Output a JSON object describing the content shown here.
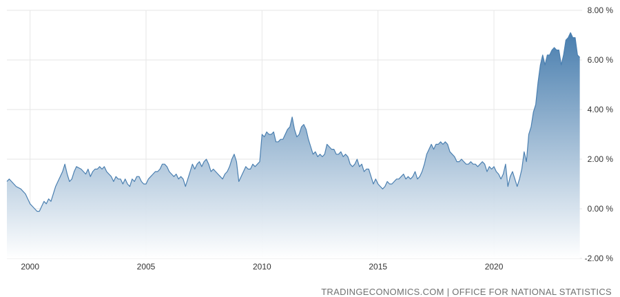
{
  "chart_data": {
    "type": "area",
    "x_unit": "year",
    "series": [
      {
        "values": [
          [
            1999.0,
            1.1
          ],
          [
            1999.1,
            1.2
          ],
          [
            1999.2,
            1.1
          ],
          [
            1999.3,
            1.0
          ],
          [
            1999.4,
            0.9
          ],
          [
            1999.6,
            0.8
          ],
          [
            1999.8,
            0.6
          ],
          [
            1999.9,
            0.4
          ],
          [
            2000.0,
            0.2
          ],
          [
            2000.1,
            0.1
          ],
          [
            2000.2,
            0.0
          ],
          [
            2000.3,
            -0.1
          ],
          [
            2000.4,
            -0.1
          ],
          [
            2000.5,
            0.1
          ],
          [
            2000.6,
            0.3
          ],
          [
            2000.7,
            0.2
          ],
          [
            2000.8,
            0.4
          ],
          [
            2000.9,
            0.3
          ],
          [
            2001.0,
            0.6
          ],
          [
            2001.1,
            0.9
          ],
          [
            2001.2,
            1.1
          ],
          [
            2001.3,
            1.3
          ],
          [
            2001.4,
            1.5
          ],
          [
            2001.5,
            1.8
          ],
          [
            2001.6,
            1.4
          ],
          [
            2001.7,
            1.1
          ],
          [
            2001.8,
            1.2
          ],
          [
            2001.9,
            1.5
          ],
          [
            2002.0,
            1.7
          ],
          [
            2002.2,
            1.6
          ],
          [
            2002.3,
            1.5
          ],
          [
            2002.4,
            1.4
          ],
          [
            2002.5,
            1.6
          ],
          [
            2002.6,
            1.3
          ],
          [
            2002.7,
            1.5
          ],
          [
            2002.8,
            1.6
          ],
          [
            2002.9,
            1.6
          ],
          [
            2003.0,
            1.7
          ],
          [
            2003.1,
            1.6
          ],
          [
            2003.2,
            1.7
          ],
          [
            2003.3,
            1.5
          ],
          [
            2003.4,
            1.4
          ],
          [
            2003.5,
            1.3
          ],
          [
            2003.6,
            1.1
          ],
          [
            2003.7,
            1.3
          ],
          [
            2003.8,
            1.2
          ],
          [
            2003.9,
            1.2
          ],
          [
            2004.0,
            1.0
          ],
          [
            2004.1,
            1.2
          ],
          [
            2004.2,
            1.0
          ],
          [
            2004.3,
            0.9
          ],
          [
            2004.4,
            1.2
          ],
          [
            2004.5,
            1.1
          ],
          [
            2004.6,
            1.3
          ],
          [
            2004.7,
            1.3
          ],
          [
            2004.8,
            1.1
          ],
          [
            2004.9,
            1.0
          ],
          [
            2005.0,
            1.0
          ],
          [
            2005.1,
            1.2
          ],
          [
            2005.2,
            1.3
          ],
          [
            2005.3,
            1.4
          ],
          [
            2005.4,
            1.5
          ],
          [
            2005.5,
            1.5
          ],
          [
            2005.6,
            1.6
          ],
          [
            2005.7,
            1.8
          ],
          [
            2005.8,
            1.8
          ],
          [
            2005.9,
            1.7
          ],
          [
            2006.0,
            1.5
          ],
          [
            2006.1,
            1.4
          ],
          [
            2006.2,
            1.3
          ],
          [
            2006.3,
            1.4
          ],
          [
            2006.4,
            1.2
          ],
          [
            2006.5,
            1.3
          ],
          [
            2006.6,
            1.2
          ],
          [
            2006.7,
            0.9
          ],
          [
            2006.8,
            1.2
          ],
          [
            2006.9,
            1.5
          ],
          [
            2007.0,
            1.8
          ],
          [
            2007.1,
            1.6
          ],
          [
            2007.2,
            1.8
          ],
          [
            2007.3,
            1.9
          ],
          [
            2007.4,
            1.7
          ],
          [
            2007.5,
            1.9
          ],
          [
            2007.6,
            2.0
          ],
          [
            2007.7,
            1.8
          ],
          [
            2007.8,
            1.5
          ],
          [
            2007.9,
            1.6
          ],
          [
            2008.0,
            1.5
          ],
          [
            2008.1,
            1.4
          ],
          [
            2008.2,
            1.3
          ],
          [
            2008.3,
            1.2
          ],
          [
            2008.4,
            1.4
          ],
          [
            2008.5,
            1.5
          ],
          [
            2008.6,
            1.7
          ],
          [
            2008.7,
            2.0
          ],
          [
            2008.8,
            2.2
          ],
          [
            2008.9,
            1.9
          ],
          [
            2009.0,
            1.1
          ],
          [
            2009.1,
            1.3
          ],
          [
            2009.2,
            1.5
          ],
          [
            2009.3,
            1.7
          ],
          [
            2009.4,
            1.6
          ],
          [
            2009.5,
            1.6
          ],
          [
            2009.6,
            1.8
          ],
          [
            2009.7,
            1.7
          ],
          [
            2009.8,
            1.8
          ],
          [
            2009.9,
            1.9
          ],
          [
            2010.0,
            3.0
          ],
          [
            2010.1,
            2.9
          ],
          [
            2010.2,
            3.1
          ],
          [
            2010.3,
            3.0
          ],
          [
            2010.4,
            3.0
          ],
          [
            2010.5,
            3.1
          ],
          [
            2010.6,
            2.7
          ],
          [
            2010.7,
            2.7
          ],
          [
            2010.8,
            2.8
          ],
          [
            2010.9,
            2.8
          ],
          [
            2011.0,
            3.0
          ],
          [
            2011.1,
            3.2
          ],
          [
            2011.2,
            3.3
          ],
          [
            2011.3,
            3.7
          ],
          [
            2011.4,
            3.2
          ],
          [
            2011.5,
            2.9
          ],
          [
            2011.6,
            3.0
          ],
          [
            2011.7,
            3.3
          ],
          [
            2011.8,
            3.4
          ],
          [
            2011.9,
            3.2
          ],
          [
            2012.0,
            2.8
          ],
          [
            2012.1,
            2.5
          ],
          [
            2012.2,
            2.2
          ],
          [
            2012.3,
            2.3
          ],
          [
            2012.4,
            2.1
          ],
          [
            2012.5,
            2.2
          ],
          [
            2012.6,
            2.1
          ],
          [
            2012.7,
            2.2
          ],
          [
            2012.8,
            2.6
          ],
          [
            2012.9,
            2.5
          ],
          [
            2013.0,
            2.4
          ],
          [
            2013.1,
            2.4
          ],
          [
            2013.2,
            2.2
          ],
          [
            2013.3,
            2.2
          ],
          [
            2013.4,
            2.3
          ],
          [
            2013.5,
            2.1
          ],
          [
            2013.6,
            2.2
          ],
          [
            2013.7,
            2.1
          ],
          [
            2013.8,
            1.8
          ],
          [
            2013.9,
            1.7
          ],
          [
            2014.0,
            1.8
          ],
          [
            2014.1,
            2.0
          ],
          [
            2014.2,
            1.7
          ],
          [
            2014.3,
            1.8
          ],
          [
            2014.4,
            1.5
          ],
          [
            2014.5,
            1.6
          ],
          [
            2014.6,
            1.6
          ],
          [
            2014.7,
            1.3
          ],
          [
            2014.8,
            1.0
          ],
          [
            2014.9,
            1.2
          ],
          [
            2015.0,
            1.0
          ],
          [
            2015.1,
            0.9
          ],
          [
            2015.2,
            0.8
          ],
          [
            2015.3,
            0.9
          ],
          [
            2015.4,
            1.1
          ],
          [
            2015.5,
            1.0
          ],
          [
            2015.6,
            1.0
          ],
          [
            2015.7,
            1.1
          ],
          [
            2015.8,
            1.2
          ],
          [
            2015.9,
            1.2
          ],
          [
            2016.0,
            1.3
          ],
          [
            2016.1,
            1.4
          ],
          [
            2016.2,
            1.2
          ],
          [
            2016.3,
            1.3
          ],
          [
            2016.4,
            1.2
          ],
          [
            2016.5,
            1.3
          ],
          [
            2016.6,
            1.5
          ],
          [
            2016.7,
            1.2
          ],
          [
            2016.8,
            1.3
          ],
          [
            2016.9,
            1.5
          ],
          [
            2017.0,
            1.8
          ],
          [
            2017.1,
            2.2
          ],
          [
            2017.2,
            2.4
          ],
          [
            2017.3,
            2.6
          ],
          [
            2017.4,
            2.4
          ],
          [
            2017.5,
            2.6
          ],
          [
            2017.6,
            2.6
          ],
          [
            2017.7,
            2.7
          ],
          [
            2017.8,
            2.6
          ],
          [
            2017.9,
            2.7
          ],
          [
            2018.0,
            2.6
          ],
          [
            2018.1,
            2.3
          ],
          [
            2018.2,
            2.2
          ],
          [
            2018.3,
            2.1
          ],
          [
            2018.4,
            1.9
          ],
          [
            2018.5,
            1.9
          ],
          [
            2018.6,
            2.0
          ],
          [
            2018.7,
            1.9
          ],
          [
            2018.8,
            1.8
          ],
          [
            2018.9,
            1.8
          ],
          [
            2019.0,
            1.9
          ],
          [
            2019.1,
            1.8
          ],
          [
            2019.2,
            1.8
          ],
          [
            2019.3,
            1.7
          ],
          [
            2019.4,
            1.8
          ],
          [
            2019.5,
            1.9
          ],
          [
            2019.6,
            1.8
          ],
          [
            2019.7,
            1.5
          ],
          [
            2019.8,
            1.7
          ],
          [
            2019.9,
            1.6
          ],
          [
            2020.0,
            1.7
          ],
          [
            2020.1,
            1.5
          ],
          [
            2020.2,
            1.4
          ],
          [
            2020.3,
            1.2
          ],
          [
            2020.4,
            1.4
          ],
          [
            2020.5,
            1.8
          ],
          [
            2020.6,
            0.9
          ],
          [
            2020.7,
            1.3
          ],
          [
            2020.8,
            1.5
          ],
          [
            2020.9,
            1.2
          ],
          [
            2021.0,
            0.9
          ],
          [
            2021.1,
            1.2
          ],
          [
            2021.2,
            1.6
          ],
          [
            2021.3,
            2.3
          ],
          [
            2021.4,
            1.9
          ],
          [
            2021.5,
            3.0
          ],
          [
            2021.6,
            3.3
          ],
          [
            2021.7,
            3.9
          ],
          [
            2021.8,
            4.2
          ],
          [
            2021.9,
            5.1
          ],
          [
            2022.0,
            5.8
          ],
          [
            2022.1,
            6.2
          ],
          [
            2022.2,
            5.8
          ],
          [
            2022.3,
            6.2
          ],
          [
            2022.4,
            6.2
          ],
          [
            2022.5,
            6.4
          ],
          [
            2022.6,
            6.5
          ],
          [
            2022.7,
            6.4
          ],
          [
            2022.8,
            6.4
          ],
          [
            2022.9,
            5.8
          ],
          [
            2023.0,
            6.2
          ],
          [
            2023.1,
            6.8
          ],
          [
            2023.2,
            6.9
          ],
          [
            2023.3,
            7.1
          ],
          [
            2023.4,
            6.9
          ],
          [
            2023.5,
            6.9
          ],
          [
            2023.6,
            6.2
          ],
          [
            2023.7,
            6.1
          ]
        ]
      }
    ],
    "x_ticks": [
      2000,
      2005,
      2010,
      2015,
      2020
    ],
    "x_tick_labels": [
      "2000",
      "2005",
      "2010",
      "2015",
      "2020"
    ],
    "y_ticks": [
      8,
      6,
      4,
      2,
      0,
      -2
    ],
    "y_tick_labels": [
      "8.00 %",
      "6.00 %",
      "4.00 %",
      "2.00 %",
      "0.00 %",
      "-2.00 %"
    ],
    "xlim": [
      1999.0,
      2023.8
    ],
    "ylim": [
      -2,
      8
    ],
    "y_axis_side": "right",
    "grid": true,
    "legend": "none",
    "colors": {
      "line": "#4a7fb0",
      "fill_top": "#3f77aa",
      "fill_bottom": "#ffffff",
      "grid": "#e6e6e6",
      "tick_text": "#333333",
      "source_text": "#707070"
    }
  },
  "source": {
    "text": "TRADINGECONOMICS.COM | OFFICE FOR NATIONAL STATISTICS"
  }
}
